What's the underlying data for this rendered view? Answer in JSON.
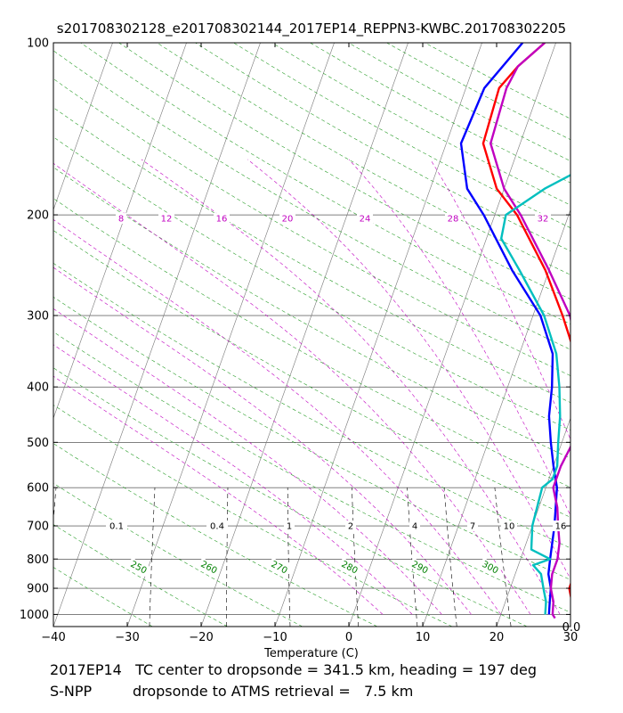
{
  "chart_data": {
    "type": "skew-t",
    "title": "s201708302128_e201708302144_2017EP14_REPPN3-KWBC.201708302205",
    "xlabel": "Temperature (C)",
    "xlim": [
      -40,
      30
    ],
    "pressure_range": [
      100,
      1050
    ],
    "x_ticks": [
      -40,
      -30,
      -20,
      -10,
      0,
      10,
      20,
      30
    ],
    "x_tick_labels": [
      "−40",
      "−30",
      "−20",
      "−10",
      "0",
      "10",
      "20",
      "30"
    ],
    "p_ticks": [
      100,
      200,
      300,
      400,
      500,
      600,
      700,
      800,
      900,
      1000
    ],
    "p_tick_labels": [
      "100",
      "200",
      "300",
      "400",
      "500",
      "600",
      "700",
      "800",
      "900",
      "1000"
    ],
    "mixing_ratio_labels": [
      "0.1",
      "0.4",
      "1",
      "2",
      "4",
      "7",
      "10",
      "16"
    ],
    "theta_labels": [
      "250",
      "260",
      "270",
      "280",
      "290",
      "300"
    ],
    "theta_w_labels": [
      "8",
      "12",
      "16",
      "20",
      "24",
      "28",
      "32"
    ],
    "corner_label": "0.0",
    "series": [
      {
        "name": "Temperature",
        "color": "#ff0000",
        "points": [
          [
            100,
            -1.5
          ],
          [
            110,
            -4
          ],
          [
            120,
            -5.5
          ],
          [
            150,
            -5
          ],
          [
            180,
            -1
          ],
          [
            200,
            3
          ],
          [
            250,
            9.5
          ],
          [
            300,
            14
          ],
          [
            350,
            17.5
          ],
          [
            400,
            20
          ],
          [
            450,
            22
          ],
          [
            500,
            23
          ],
          [
            550,
            24
          ],
          [
            600,
            24.5
          ],
          [
            650,
            25.5
          ],
          [
            700,
            26.5
          ],
          [
            750,
            27.5
          ],
          [
            800,
            28
          ],
          [
            850,
            28
          ],
          [
            900,
            28
          ],
          [
            950,
            29
          ],
          [
            1000,
            30
          ],
          [
            1015,
            30
          ]
        ]
      },
      {
        "name": "Dewpoint",
        "color": "#0000ff",
        "points": [
          [
            100,
            -4.5
          ],
          [
            120,
            -7.5
          ],
          [
            150,
            -8
          ],
          [
            180,
            -5
          ],
          [
            200,
            -1.5
          ],
          [
            250,
            5
          ],
          [
            300,
            11
          ],
          [
            350,
            14.5
          ],
          [
            400,
            16
          ],
          [
            450,
            17
          ],
          [
            500,
            18.5
          ],
          [
            550,
            20
          ],
          [
            600,
            21.5
          ],
          [
            700,
            23
          ],
          [
            800,
            24
          ],
          [
            850,
            24.5
          ],
          [
            900,
            25.5
          ],
          [
            950,
            26
          ],
          [
            1000,
            26.5
          ]
        ]
      },
      {
        "name": "Retrieval temperature",
        "color": "#c000c0",
        "points": [
          [
            100,
            -1.5
          ],
          [
            110,
            -4
          ],
          [
            120,
            -4.5
          ],
          [
            150,
            -4
          ],
          [
            180,
            0
          ],
          [
            200,
            3.5
          ],
          [
            250,
            10
          ],
          [
            300,
            15
          ],
          [
            350,
            18
          ],
          [
            400,
            20
          ],
          [
            450,
            21.5
          ],
          [
            500,
            21.5
          ],
          [
            550,
            21
          ],
          [
            600,
            21
          ],
          [
            650,
            22.5
          ],
          [
            700,
            23.5
          ],
          [
            750,
            24.5
          ],
          [
            800,
            25
          ],
          [
            850,
            25
          ],
          [
            900,
            25.5
          ],
          [
            950,
            26.5
          ],
          [
            1000,
            27
          ],
          [
            1015,
            27.5
          ]
        ]
      },
      {
        "name": "Retrieval dewpoint",
        "color": "#00bfbf",
        "points": [
          [
            160,
            13
          ],
          [
            165,
            10
          ],
          [
            180,
            5.5
          ],
          [
            200,
            1.5
          ],
          [
            220,
            2
          ],
          [
            250,
            6
          ],
          [
            300,
            11.5
          ],
          [
            350,
            15
          ],
          [
            400,
            17
          ],
          [
            450,
            18.5
          ],
          [
            500,
            19.5
          ],
          [
            550,
            20.5
          ],
          [
            580,
            20.5
          ],
          [
            600,
            19.5
          ],
          [
            700,
            20
          ],
          [
            770,
            21
          ],
          [
            800,
            24
          ],
          [
            820,
            22
          ],
          [
            850,
            23.5
          ],
          [
            900,
            24.5
          ],
          [
            950,
            25.5
          ],
          [
            1000,
            26
          ]
        ]
      }
    ]
  },
  "footer": {
    "line1": "2017EP14   TC center to dropsonde = 341.5 km, heading = 197 deg",
    "line2": "S-NPP         dropsonde to ATMS retrieval =   7.5 km"
  }
}
